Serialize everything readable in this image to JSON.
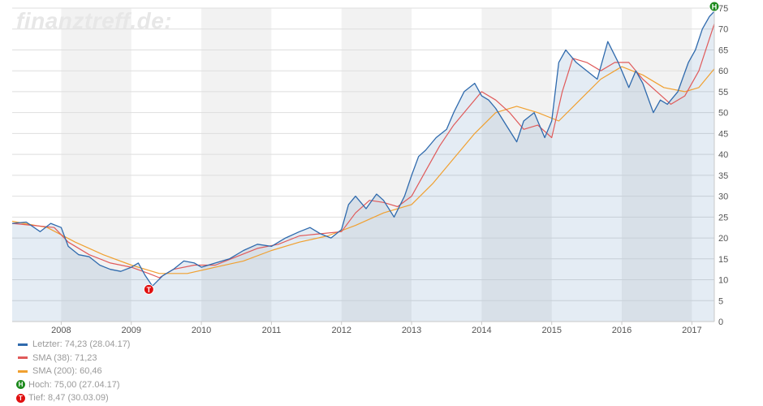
{
  "watermark": "finanztreff.de:",
  "chart_data": {
    "type": "line",
    "ylim": [
      0,
      75
    ],
    "y_ticks": [
      0,
      5,
      10,
      15,
      20,
      25,
      30,
      35,
      40,
      45,
      50,
      55,
      60,
      65,
      70,
      75
    ],
    "x_ticks": [
      "2008",
      "2009",
      "2010",
      "2011",
      "2012",
      "2013",
      "2014",
      "2015",
      "2016",
      "2017"
    ],
    "series": [
      {
        "color": "#2f6aad",
        "x": [
          2007.3,
          2007.5,
          2007.7,
          2007.85,
          2008.0,
          2008.1,
          2008.25,
          2008.4,
          2008.55,
          2008.7,
          2008.85,
          2009.0,
          2009.1,
          2009.2,
          2009.3,
          2009.45,
          2009.6,
          2009.75,
          2009.9,
          2010.0,
          2010.2,
          2010.4,
          2010.6,
          2010.8,
          2011.0,
          2011.2,
          2011.4,
          2011.55,
          2011.7,
          2011.85,
          2012.0,
          2012.1,
          2012.2,
          2012.35,
          2012.5,
          2012.6,
          2012.75,
          2012.9,
          2013.0,
          2013.1,
          2013.2,
          2013.35,
          2013.5,
          2013.6,
          2013.75,
          2013.9,
          2014.0,
          2014.1,
          2014.2,
          2014.35,
          2014.5,
          2014.6,
          2014.75,
          2014.9,
          2015.0,
          2015.1,
          2015.2,
          2015.35,
          2015.5,
          2015.65,
          2015.8,
          2015.95,
          2016.1,
          2016.2,
          2016.3,
          2016.45,
          2016.55,
          2016.65,
          2016.8,
          2016.95,
          2017.05,
          2017.15,
          2017.25,
          2017.32
        ],
        "values": [
          23.5,
          23.8,
          21.5,
          23.5,
          22.5,
          18.0,
          16.0,
          15.5,
          13.5,
          12.5,
          12.0,
          13.0,
          14.0,
          11.0,
          8.5,
          11.0,
          12.5,
          14.5,
          14.0,
          13.0,
          14.0,
          15.0,
          17.0,
          18.5,
          18.0,
          20.0,
          21.5,
          22.5,
          21.0,
          20.0,
          22.0,
          28.0,
          30.0,
          27.0,
          30.5,
          29.0,
          25.0,
          30.0,
          35.0,
          39.5,
          41.0,
          44.0,
          46.0,
          50.0,
          55.0,
          57.0,
          54.0,
          53.0,
          51.0,
          47.0,
          43.0,
          48.0,
          50.0,
          44.0,
          48.0,
          62.0,
          65.0,
          62.0,
          60.0,
          58.0,
          67.0,
          62.0,
          56.0,
          60.0,
          57.0,
          50.0,
          53.0,
          52.0,
          55.0,
          62.0,
          65.0,
          70.0,
          73.0,
          74.23
        ]
      },
      {
        "color": "#e05a5a",
        "x": [
          2007.3,
          2007.6,
          2007.9,
          2008.1,
          2008.4,
          2008.7,
          2009.0,
          2009.25,
          2009.4,
          2009.6,
          2009.9,
          2010.2,
          2010.5,
          2010.8,
          2011.1,
          2011.4,
          2011.7,
          2012.0,
          2012.2,
          2012.4,
          2012.6,
          2012.8,
          2013.0,
          2013.2,
          2013.4,
          2013.6,
          2013.8,
          2014.0,
          2014.2,
          2014.4,
          2014.6,
          2014.8,
          2015.0,
          2015.15,
          2015.3,
          2015.5,
          2015.7,
          2015.9,
          2016.1,
          2016.3,
          2016.5,
          2016.7,
          2016.9,
          2017.1,
          2017.32
        ],
        "values": [
          23.5,
          23.0,
          22.5,
          19.0,
          16.0,
          14.0,
          13.0,
          11.5,
          10.5,
          12.5,
          13.5,
          13.5,
          15.5,
          17.5,
          18.5,
          20.5,
          21.0,
          21.5,
          26.0,
          29.0,
          28.5,
          27.5,
          30.0,
          36.0,
          42.0,
          47.0,
          51.0,
          55.0,
          53.0,
          50.0,
          46.0,
          47.0,
          44.0,
          55.0,
          63.0,
          62.0,
          60.0,
          62.0,
          62.0,
          58.0,
          55.0,
          52.0,
          54.0,
          60.0,
          71.23
        ]
      },
      {
        "color": "#f0a030",
        "x": [
          2007.3,
          2007.8,
          2008.2,
          2008.6,
          2009.0,
          2009.4,
          2009.8,
          2010.2,
          2010.6,
          2011.0,
          2011.4,
          2011.8,
          2012.2,
          2012.6,
          2013.0,
          2013.3,
          2013.6,
          2013.9,
          2014.2,
          2014.5,
          2014.8,
          2015.1,
          2015.4,
          2015.7,
          2016.0,
          2016.3,
          2016.6,
          2016.9,
          2017.1,
          2017.32
        ],
        "values": [
          24.0,
          22.5,
          19.0,
          16.0,
          13.5,
          11.5,
          11.5,
          13.0,
          14.5,
          17.0,
          19.0,
          20.5,
          23.0,
          26.0,
          28.0,
          33.0,
          39.0,
          45.0,
          50.0,
          51.5,
          50.0,
          48.0,
          53.0,
          58.0,
          61.0,
          59.0,
          56.0,
          55.0,
          56.0,
          60.46
        ]
      }
    ],
    "markers": [
      {
        "label": "H",
        "x": 2017.32,
        "y": 75.0
      },
      {
        "label": "T",
        "x": 2009.25,
        "y": 8.47
      }
    ]
  },
  "legend": [
    {
      "text": "Letzter: 74,23 (28.04.17)",
      "color": "#2f6aad"
    },
    {
      "text": "SMA (38): 71,23",
      "color": "#e05a5a"
    },
    {
      "text": "SMA (200): 60,46",
      "color": "#f0a030"
    },
    {
      "text": "Hoch: 75,00 (27.04.17)",
      "marker": "H"
    },
    {
      "text": "Tief: 8,47 (30.03.09)",
      "marker": "T"
    }
  ]
}
